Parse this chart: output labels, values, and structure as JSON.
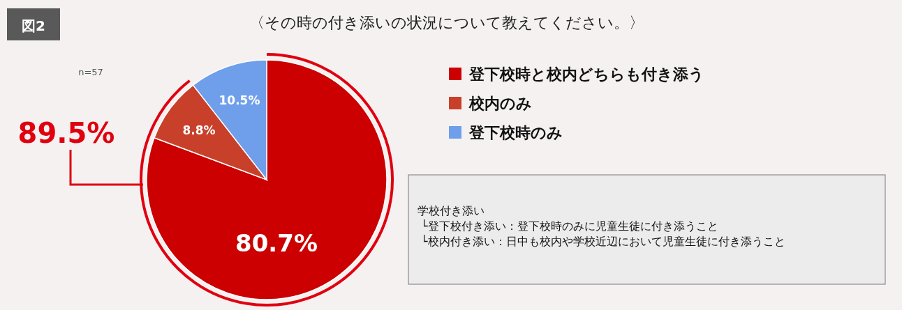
{
  "chart_data": {
    "type": "pie",
    "title": "〈その時の付き添いの状況について教えてください。〉",
    "categories": [
      "登下校時と校内どちらも付き添う",
      "校内のみ",
      "登下校時のみ"
    ],
    "values": [
      80.7,
      8.8,
      10.5
    ],
    "colors": [
      "#cc0000",
      "#c8402a",
      "#6f9fea"
    ],
    "value_labels": [
      "80.7%",
      "8.8%",
      "10.5%"
    ],
    "legend": "right",
    "annotations": [
      "図2",
      "n=57",
      "89.5%",
      "学校付き添い",
      "└登下校付き添い：登下校時のみに児童生徒に付き添うこと",
      "└校内付き添い：日中も校内や学校近辺において児童生徒に付き添うこと"
    ]
  }
}
